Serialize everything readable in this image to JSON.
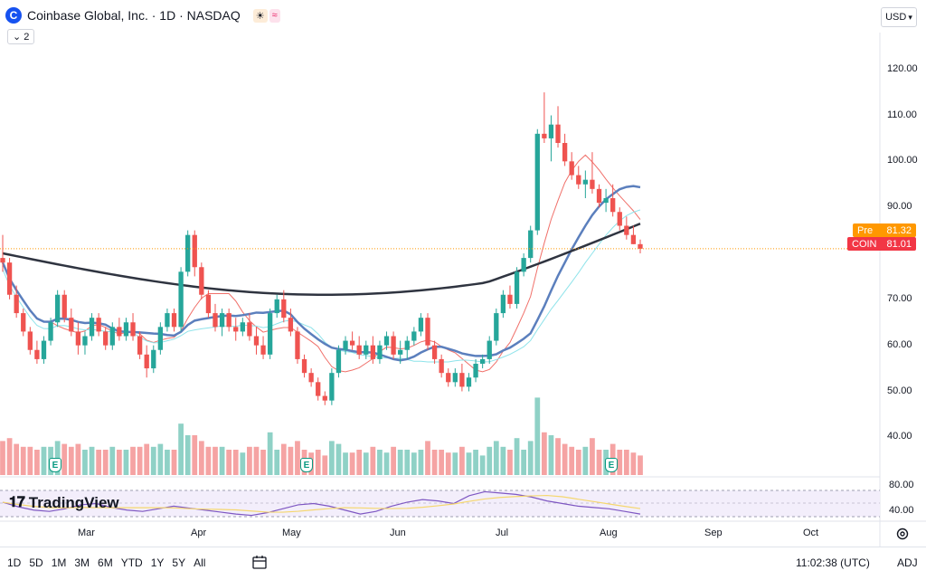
{
  "header": {
    "logo_letter": "C",
    "symbol_title": "Coinbase Global, Inc. · 1D · NASDAQ",
    "badge_sun": "☀",
    "badge_wave": "≈",
    "collapse_label": "⌄ 2",
    "currency": "USD"
  },
  "price_axis": {
    "labels": [
      "120.00",
      "110.00",
      "100.00",
      "90.00",
      "70.00",
      "60.00",
      "50.00",
      "40.00"
    ],
    "values": [
      120,
      110,
      100,
      90,
      70,
      60,
      50,
      40
    ]
  },
  "rsi_axis": {
    "labels": [
      "80.00",
      "40.00"
    ]
  },
  "tags": {
    "pre_label": "Pre",
    "pre_value": "81.32",
    "last_label": "COIN",
    "last_value": "81.01"
  },
  "months": [
    "Mar",
    "Apr",
    "May",
    "Jun",
    "Jul",
    "Aug",
    "Sep",
    "Oct"
  ],
  "earnings_marker": "E",
  "watermark": "TradingView",
  "bottom": {
    "ranges": [
      "1D",
      "5D",
      "1M",
      "3M",
      "6M",
      "YTD",
      "1Y",
      "5Y",
      "All"
    ],
    "time": "11:02:38 (UTC)",
    "adj": "ADJ"
  },
  "colors": {
    "up": "#26a69a",
    "down": "#ef5350",
    "vol_up": "#8fd1c6",
    "vol_down": "#f5a3a3",
    "ma_short": "#f0706a",
    "ma_mid": "#5b7fbd",
    "ma_long": "#2f3440",
    "ma_cyan": "#8ee3ea",
    "rsi": "#7e57c2",
    "rsi_ma": "#f5d76e",
    "pre": "#ff9800",
    "last": "#f23645"
  },
  "chart_data": {
    "type": "candlestick",
    "ylim": [
      32,
      128
    ],
    "last_price": 81.01,
    "pre_price": 81.32,
    "candles": [
      [
        79,
        84,
        76,
        78
      ],
      [
        78,
        79,
        70,
        71
      ],
      [
        71,
        73,
        66,
        67
      ],
      [
        67,
        68,
        62,
        63
      ],
      [
        63,
        64,
        58,
        59
      ],
      [
        59,
        61,
        56,
        57
      ],
      [
        57,
        62,
        56,
        61
      ],
      [
        61,
        66,
        60,
        65
      ],
      [
        65,
        72,
        64,
        71
      ],
      [
        71,
        72,
        65,
        66
      ],
      [
        66,
        68,
        62,
        63
      ],
      [
        63,
        65,
        58,
        60
      ],
      [
        60,
        63,
        58,
        62
      ],
      [
        62,
        67,
        61,
        66
      ],
      [
        66,
        67,
        62,
        63
      ],
      [
        63,
        64,
        59,
        60
      ],
      [
        60,
        65,
        59,
        64
      ],
      [
        64,
        66,
        61,
        62
      ],
      [
        62,
        66,
        61,
        65
      ],
      [
        65,
        67,
        61,
        62
      ],
      [
        62,
        63,
        57,
        58
      ],
      [
        58,
        60,
        53,
        55
      ],
      [
        55,
        60,
        54,
        59
      ],
      [
        59,
        65,
        58,
        64
      ],
      [
        64,
        68,
        63,
        67
      ],
      [
        67,
        68,
        63,
        64
      ],
      [
        64,
        77,
        63,
        76
      ],
      [
        76,
        85,
        75,
        84
      ],
      [
        84,
        85,
        75,
        77
      ],
      [
        77,
        78,
        70,
        71
      ],
      [
        71,
        72,
        66,
        67
      ],
      [
        67,
        69,
        63,
        64
      ],
      [
        64,
        68,
        62,
        67
      ],
      [
        67,
        68,
        63,
        64
      ],
      [
        64,
        66,
        61,
        63
      ],
      [
        63,
        66,
        62,
        65
      ],
      [
        65,
        67,
        61,
        62
      ],
      [
        62,
        64,
        58,
        60
      ],
      [
        60,
        62,
        57,
        58
      ],
      [
        58,
        68,
        57,
        67
      ],
      [
        67,
        71,
        66,
        70
      ],
      [
        70,
        72,
        65,
        66
      ],
      [
        66,
        68,
        62,
        63
      ],
      [
        63,
        64,
        56,
        57
      ],
      [
        57,
        58,
        53,
        54
      ],
      [
        54,
        55,
        51,
        52
      ],
      [
        52,
        53,
        48,
        49
      ],
      [
        49,
        50,
        47,
        48
      ],
      [
        48,
        55,
        47,
        54
      ],
      [
        54,
        60,
        53,
        59
      ],
      [
        59,
        62,
        58,
        61
      ],
      [
        61,
        63,
        59,
        60
      ],
      [
        60,
        62,
        57,
        58
      ],
      [
        58,
        61,
        57,
        60
      ],
      [
        60,
        62,
        56,
        57
      ],
      [
        57,
        61,
        56,
        60
      ],
      [
        60,
        63,
        59,
        62
      ],
      [
        62,
        63,
        57,
        58
      ],
      [
        58,
        61,
        56,
        59
      ],
      [
        59,
        62,
        57,
        61
      ],
      [
        61,
        64,
        60,
        63
      ],
      [
        63,
        67,
        62,
        66
      ],
      [
        66,
        67,
        59,
        60
      ],
      [
        60,
        61,
        56,
        57
      ],
      [
        57,
        58,
        53,
        54
      ],
      [
        54,
        55,
        51,
        52
      ],
      [
        52,
        55,
        51,
        54
      ],
      [
        54,
        56,
        50,
        51
      ],
      [
        51,
        54,
        50,
        53
      ],
      [
        53,
        57,
        52,
        56
      ],
      [
        56,
        58,
        55,
        57
      ],
      [
        57,
        62,
        56,
        61
      ],
      [
        61,
        68,
        60,
        67
      ],
      [
        67,
        72,
        66,
        71
      ],
      [
        71,
        73,
        68,
        69
      ],
      [
        69,
        77,
        68,
        76
      ],
      [
        76,
        80,
        75,
        79
      ],
      [
        79,
        86,
        78,
        85
      ],
      [
        85,
        107,
        84,
        106
      ],
      [
        106,
        115,
        104,
        105
      ],
      [
        105,
        110,
        100,
        108
      ],
      [
        108,
        112,
        103,
        104
      ],
      [
        104,
        106,
        99,
        100
      ],
      [
        100,
        102,
        96,
        97
      ],
      [
        97,
        99,
        94,
        95
      ],
      [
        95,
        98,
        92,
        96
      ],
      [
        96,
        102,
        93,
        94
      ],
      [
        94,
        95,
        90,
        91
      ],
      [
        91,
        94,
        89,
        92
      ],
      [
        92,
        95,
        88,
        89
      ],
      [
        89,
        90,
        85,
        86
      ],
      [
        86,
        88,
        83,
        84
      ],
      [
        84,
        86,
        82,
        82
      ],
      [
        82,
        83,
        80,
        81
      ]
    ],
    "rsi_values": [
      62,
      55,
      50,
      48,
      52,
      58,
      60,
      54,
      50,
      48,
      52,
      56,
      53,
      50,
      47,
      44,
      42,
      46,
      52,
      58,
      60,
      56,
      50,
      44,
      48,
      56,
      62,
      66,
      64,
      60,
      72,
      78,
      76,
      74,
      70,
      64,
      60,
      56,
      54,
      52,
      48,
      44
    ]
  }
}
